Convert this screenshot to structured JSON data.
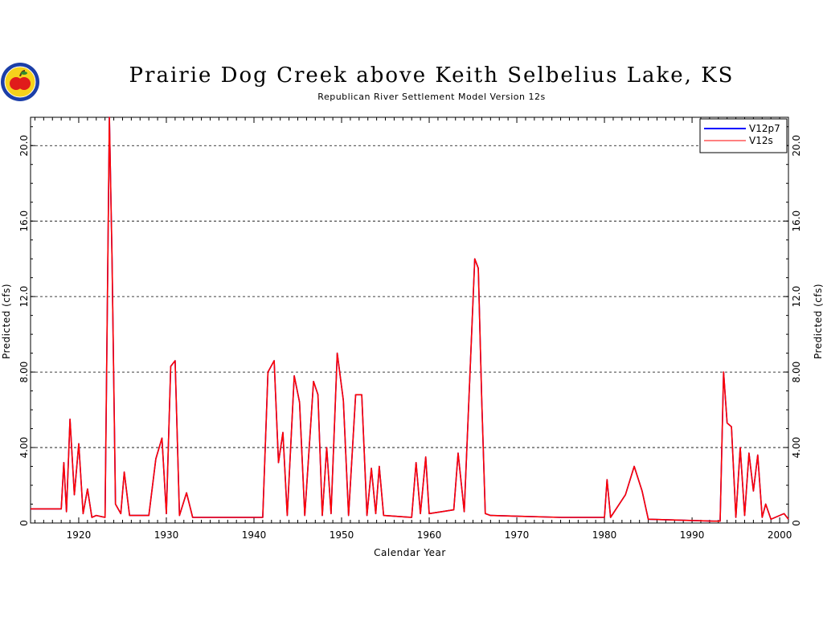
{
  "logo": {
    "icon": "apple-logo-icon",
    "colors": {
      "ring": "#1c3fa8",
      "fill": "#f5d21c",
      "apple": "#e01b1b"
    }
  },
  "chart_data": {
    "type": "line",
    "title": "Prairie Dog Creek above Keith Selbelius Lake, KS",
    "subtitle": "Republican River Settlement Model Version 12s",
    "xlabel": "Calendar Year",
    "ylabel": "Predicted (cfs)",
    "xlim": [
      1914.5,
      2001
    ],
    "ylim": [
      0,
      21.5
    ],
    "x_ticks": [
      1920,
      1930,
      1940,
      1950,
      1960,
      1970,
      1980,
      1990,
      2000
    ],
    "x_tick_labels": [
      "1920",
      "1930",
      "1940",
      "1950",
      "1960",
      "1970",
      "1980",
      "1990",
      "2000"
    ],
    "y_ticks": [
      0,
      4,
      8,
      12,
      16,
      20
    ],
    "y_tick_labels": [
      "0",
      "4.00",
      "8.00",
      "12.0",
      "16.0",
      "20.0"
    ],
    "grid": "horizontal dashed",
    "legend_position": "top-right",
    "series": [
      {
        "name": "V12p7",
        "color": "#0000ff",
        "x": [
          1914.5,
          1918.0,
          1918.3,
          1918.6,
          1919.0,
          1919.5,
          1920.0,
          1920.5,
          1921.0,
          1921.5,
          1922.0,
          1923.0,
          1923.5,
          1923.8,
          1924.2,
          1924.8,
          1925.2,
          1925.8,
          1928.0,
          1928.8,
          1929.5,
          1930.0,
          1930.5,
          1931.0,
          1931.5,
          1932.3,
          1933.0,
          1941.0,
          1941.6,
          1942.3,
          1942.8,
          1943.3,
          1943.8,
          1944.6,
          1945.2,
          1945.8,
          1946.8,
          1947.3,
          1947.8,
          1948.3,
          1948.8,
          1949.5,
          1950.2,
          1950.8,
          1951.6,
          1952.3,
          1952.9,
          1953.4,
          1953.9,
          1954.3,
          1954.8,
          1958.0,
          1958.5,
          1959.0,
          1959.6,
          1960.0,
          1962.8,
          1963.3,
          1964.0,
          1965.2,
          1965.6,
          1966.0,
          1966.4,
          1967.0,
          1975.0,
          1980.0,
          1980.3,
          1980.7,
          1982.4,
          1983.4,
          1984.3,
          1985.0,
          1992.5,
          1993.2,
          1993.6,
          1994.0,
          1994.5,
          1995.0,
          1995.5,
          1996.0,
          1996.5,
          1997.0,
          1997.5,
          1998.0,
          1998.4,
          1999.0,
          2000.5,
          2001.0
        ],
        "values": [
          0.75,
          0.75,
          3.2,
          0.6,
          5.5,
          1.5,
          4.2,
          0.5,
          1.8,
          0.3,
          0.4,
          0.3,
          21.5,
          14.0,
          1.0,
          0.5,
          2.7,
          0.4,
          0.4,
          3.4,
          4.5,
          0.5,
          8.3,
          8.6,
          0.4,
          1.6,
          0.3,
          0.3,
          8.0,
          8.6,
          3.2,
          4.8,
          0.4,
          7.8,
          6.4,
          0.4,
          7.5,
          6.8,
          0.4,
          4.0,
          0.5,
          9.0,
          6.5,
          0.4,
          6.8,
          6.8,
          0.4,
          2.9,
          0.5,
          3.0,
          0.4,
          0.3,
          3.2,
          0.5,
          3.5,
          0.5,
          0.7,
          3.7,
          0.6,
          14.0,
          13.5,
          6.5,
          0.5,
          0.4,
          0.3,
          0.3,
          2.3,
          0.3,
          1.5,
          3.0,
          1.7,
          0.2,
          0.1,
          0.1,
          8.0,
          5.3,
          5.1,
          0.3,
          4.0,
          0.4,
          3.7,
          1.7,
          3.6,
          0.3,
          1.0,
          0.2,
          0.5,
          0.2
        ]
      },
      {
        "name": "V12s",
        "color": "#ff0000",
        "x": [
          1914.5,
          1918.0,
          1918.3,
          1918.6,
          1919.0,
          1919.5,
          1920.0,
          1920.5,
          1921.0,
          1921.5,
          1922.0,
          1923.0,
          1923.5,
          1923.8,
          1924.2,
          1924.8,
          1925.2,
          1925.8,
          1928.0,
          1928.8,
          1929.5,
          1930.0,
          1930.5,
          1931.0,
          1931.5,
          1932.3,
          1933.0,
          1941.0,
          1941.6,
          1942.3,
          1942.8,
          1943.3,
          1943.8,
          1944.6,
          1945.2,
          1945.8,
          1946.8,
          1947.3,
          1947.8,
          1948.3,
          1948.8,
          1949.5,
          1950.2,
          1950.8,
          1951.6,
          1952.3,
          1952.9,
          1953.4,
          1953.9,
          1954.3,
          1954.8,
          1958.0,
          1958.5,
          1959.0,
          1959.6,
          1960.0,
          1962.8,
          1963.3,
          1964.0,
          1965.2,
          1965.6,
          1966.0,
          1966.4,
          1967.0,
          1975.0,
          1980.0,
          1980.3,
          1980.7,
          1982.4,
          1983.4,
          1984.3,
          1985.0,
          1992.5,
          1993.2,
          1993.6,
          1994.0,
          1994.5,
          1995.0,
          1995.5,
          1996.0,
          1996.5,
          1997.0,
          1997.5,
          1998.0,
          1998.4,
          1999.0,
          2000.5,
          2001.0
        ],
        "values": [
          0.75,
          0.75,
          3.2,
          0.6,
          5.5,
          1.5,
          4.2,
          0.5,
          1.8,
          0.3,
          0.4,
          0.3,
          21.5,
          14.0,
          1.0,
          0.5,
          2.7,
          0.4,
          0.4,
          3.4,
          4.5,
          0.5,
          8.3,
          8.6,
          0.4,
          1.6,
          0.3,
          0.3,
          8.0,
          8.6,
          3.2,
          4.8,
          0.4,
          7.8,
          6.4,
          0.4,
          7.5,
          6.8,
          0.4,
          4.0,
          0.5,
          9.0,
          6.5,
          0.4,
          6.8,
          6.8,
          0.4,
          2.9,
          0.5,
          3.0,
          0.4,
          0.3,
          3.2,
          0.5,
          3.5,
          0.5,
          0.7,
          3.7,
          0.6,
          14.0,
          13.5,
          6.5,
          0.5,
          0.4,
          0.3,
          0.3,
          2.3,
          0.3,
          1.5,
          3.0,
          1.7,
          0.2,
          0.1,
          0.1,
          8.0,
          5.3,
          5.1,
          0.3,
          4.0,
          0.4,
          3.7,
          1.7,
          3.6,
          0.3,
          1.0,
          0.2,
          0.5,
          0.2
        ]
      }
    ]
  }
}
